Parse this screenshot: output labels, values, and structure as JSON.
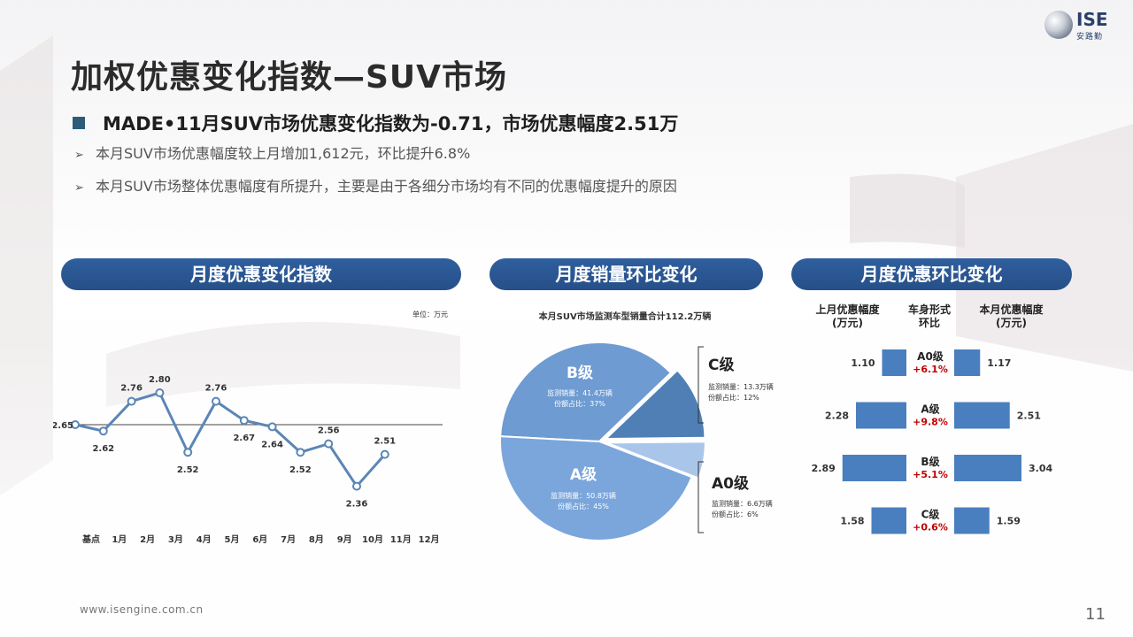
{
  "title": "加权优惠变化指数—SUV市场",
  "logo": {
    "brand": "ISE",
    "sub": "安路勤"
  },
  "headline": "MADE•11月SUV市场优惠变化指数为-0.71，市场优惠幅度2.51万",
  "bullets": [
    "本月SUV市场优惠幅度较上月增加1,612元，环比提升6.8%",
    "本月SUV市场整体优惠幅度有所提升，主要是由于各细分市场均有不同的优惠幅度提升的原因"
  ],
  "pills": [
    "月度优惠变化指数",
    "月度销量环比变化",
    "月度优惠环比变化"
  ],
  "line_unit": "单位：万元",
  "pie_caption": "本月SUV市场监测车型销量合计112.2万辆",
  "footer": "www.isengine.com.cn",
  "page_number": "11",
  "colors": {
    "navy": "#264f88",
    "line": "#5b86b5",
    "pieB": "#6e9bd1",
    "pieA": "#7ba6dc",
    "pieC": "#4f7fb5",
    "pieA0": "#a9c6ea",
    "bar": "#4a7fbf",
    "red": "#c00000"
  },
  "chart_data": [
    {
      "type": "line",
      "title": "月度优惠变化指数",
      "unit": "万元",
      "categories": [
        "基点",
        "1月",
        "2月",
        "3月",
        "4月",
        "5月",
        "6月",
        "7月",
        "8月",
        "9月",
        "10月",
        "11月",
        "12月"
      ],
      "values": [
        2.65,
        2.62,
        2.76,
        2.8,
        2.52,
        2.76,
        2.67,
        2.64,
        2.52,
        2.56,
        2.36,
        2.51,
        null
      ],
      "baseline": 2.65,
      "ylim": [
        2.0,
        3.2
      ]
    },
    {
      "type": "pie",
      "title": "月度销量环比变化",
      "caption": "本月SUV市场监测车型销量合计112.2万辆",
      "slices": [
        {
          "name": "B级",
          "volume": "41.4万辆",
          "share": 37,
          "sales_label": "监测销量：41.4万辆",
          "share_label": "份额占比：37%"
        },
        {
          "name": "C级",
          "volume": "13.3万辆",
          "share": 12,
          "sales_label": "监测销量：13.3万辆",
          "share_label": "份额占比：12%"
        },
        {
          "name": "A0级",
          "volume": "6.6万辆",
          "share": 6,
          "sales_label": "监测销量：6.6万辆",
          "share_label": "份额占比：6%"
        },
        {
          "name": "A级",
          "volume": "50.8万辆",
          "share": 45,
          "sales_label": "监测销量：50.8万辆",
          "share_label": "份额占比：45%"
        }
      ]
    },
    {
      "type": "bar",
      "title": "月度优惠环比变化",
      "column_headers": {
        "prev": "上月优惠幅度\n(万元)",
        "mid": "车身形式\n环比",
        "curr": "本月优惠幅度\n(万元)"
      },
      "rows": [
        {
          "segment": "A0级",
          "change": "+6.1%",
          "prev": 1.1,
          "curr": 1.17
        },
        {
          "segment": "A级",
          "change": "+9.8%",
          "prev": 2.28,
          "curr": 2.51
        },
        {
          "segment": "B级",
          "change": "+5.1%",
          "prev": 2.89,
          "curr": 3.04
        },
        {
          "segment": "C级",
          "change": "+0.6%",
          "prev": 1.58,
          "curr": 1.59
        }
      ]
    }
  ]
}
